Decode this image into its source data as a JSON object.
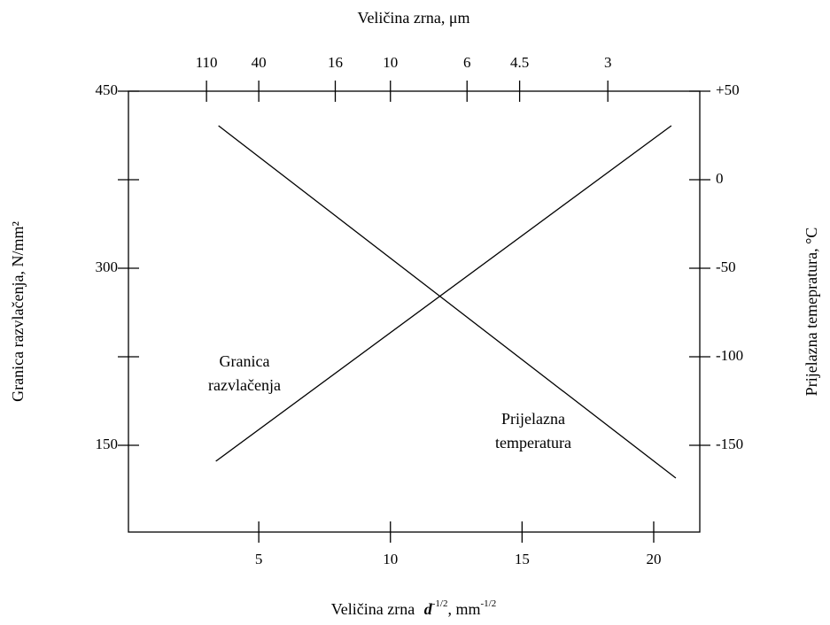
{
  "chart_data": {
    "type": "line",
    "title": "Veličina zrna, μm",
    "xlabel": {
      "text": "Veličina zrna",
      "symbol": "d",
      "exp": "-1/2",
      "unit": ", mm",
      "unit_exp": "-1/2"
    },
    "ylabel": "Granica razvlačenja, N/mm²",
    "y2label": "Prijelazna temepratura, °C",
    "xlim": [
      0.05,
      21.75
    ],
    "xticks": [
      5,
      10,
      15,
      20
    ],
    "x2scale": "inverse_sqrt",
    "x2ticks": [
      110,
      40,
      16,
      10,
      6,
      4.5,
      3
    ],
    "ylim": [
      76.5,
      450
    ],
    "yticks": [
      150,
      300,
      450
    ],
    "yminorticks": [
      225,
      375
    ],
    "y2lim": [
      -199,
      50
    ],
    "y2ticks": [
      -150,
      -100,
      -50,
      0,
      {
        "value": 50,
        "label": "+50"
      }
    ],
    "grid": false,
    "series": [
      {
        "label_lines": [
          "Granica",
          "razvlačenja"
        ],
        "color": "#000000",
        "x": [
          3.37,
          20.67
        ],
        "values": [
          136.5,
          420.75
        ]
      },
      {
        "label_lines": [
          "Prijelazna",
          "temperatura"
        ],
        "color": "#000000",
        "x": [
          3.47,
          20.84
        ],
        "values": [
          30.5,
          -168.5
        ],
        "axis": "y2"
      }
    ]
  }
}
